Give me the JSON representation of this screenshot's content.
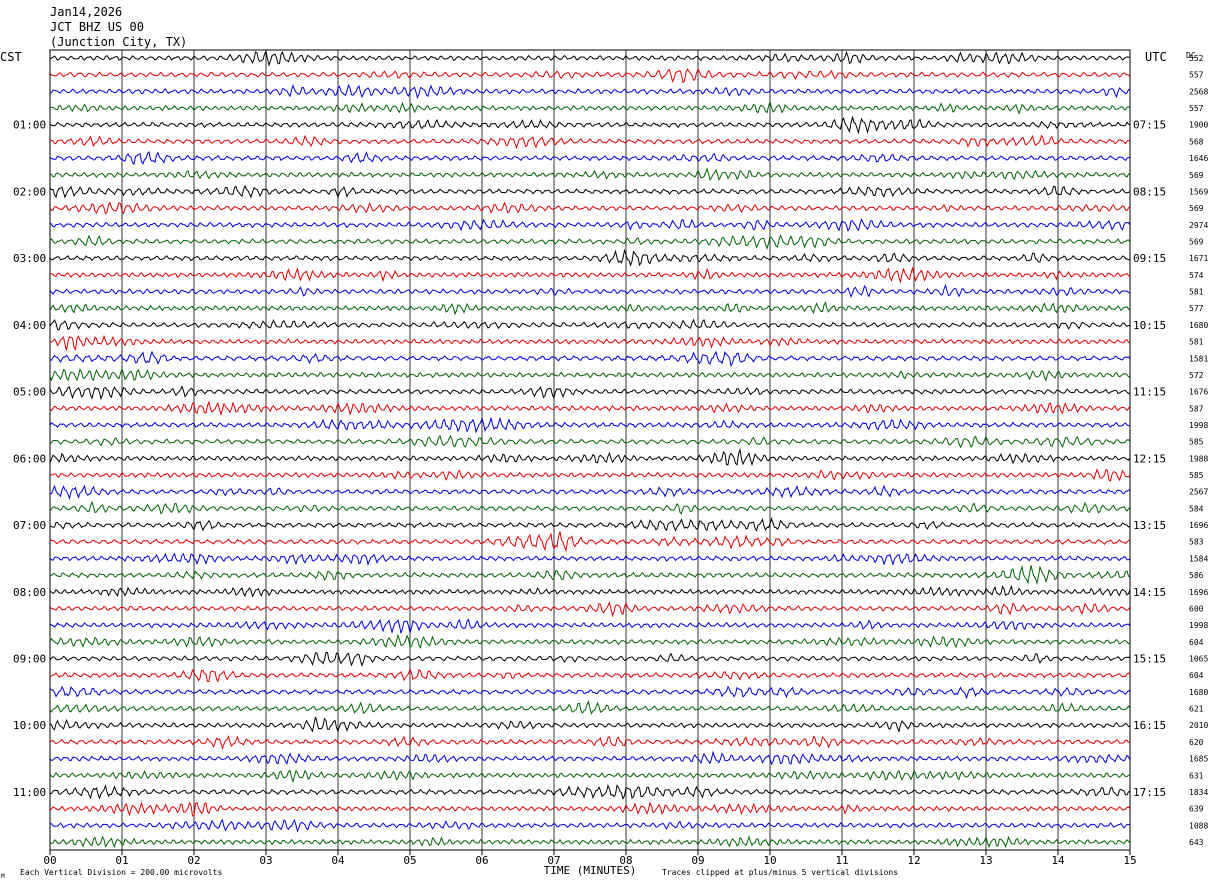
{
  "header": {
    "date": "Jan14,2026",
    "station": "JCT BHZ US 00",
    "location": "(Junction City, TX)"
  },
  "left_timezone": "CST",
  "right_timezone": "UTC",
  "dc_header": "DC",
  "footer": {
    "scale_note": "Each Vertical Division =  200.00 microvolts",
    "clip_note": "Traces clipped at plus/minus 5 vertical divisions",
    "corner_mark": "M"
  },
  "colors": {
    "trace_cycle": [
      "#000000",
      "#e00000",
      "#0000e0",
      "#006400"
    ],
    "grid": "#000000"
  },
  "chart_data": {
    "type": "line",
    "title": "",
    "xlabel": "TIME (MINUTES)",
    "x_ticks": [
      "00",
      "01",
      "02",
      "03",
      "04",
      "05",
      "06",
      "07",
      "08",
      "09",
      "10",
      "11",
      "12",
      "13",
      "14",
      "15"
    ],
    "xlim": [
      0,
      15
    ],
    "trace_count": 48,
    "traces_per_hour": 4,
    "left_hour_labels": [
      "01:00",
      "02:00",
      "03:00",
      "04:00",
      "05:00",
      "06:00",
      "07:00",
      "08:00",
      "09:00",
      "10:00",
      "11:00"
    ],
    "right_hour_labels": [
      "07:15",
      "08:15",
      "09:15",
      "10:15",
      "11:15",
      "12:15",
      "13:15",
      "14:15",
      "15:15",
      "16:15",
      "17:15"
    ],
    "hour_label_first_trace": 4,
    "dc_offsets": [
      "552",
      "557",
      "2568",
      "557",
      "1900",
      "568",
      "1646",
      "569",
      "1569",
      "569",
      "2974",
      "569",
      "1671",
      "574",
      "581",
      "577",
      "1680",
      "581",
      "1581",
      "572",
      "1676",
      "587",
      "1998",
      "585",
      "1988",
      "585",
      "2567",
      "584",
      "1696",
      "583",
      "1584",
      "586",
      "1696",
      "600",
      "1998",
      "604",
      "1065",
      "604",
      "1680",
      "621",
      "2010",
      "620",
      "1685",
      "631",
      "1834",
      "639",
      "1088",
      "643"
    ],
    "series_colors_cycle": [
      "black",
      "red",
      "blue",
      "green"
    ]
  }
}
